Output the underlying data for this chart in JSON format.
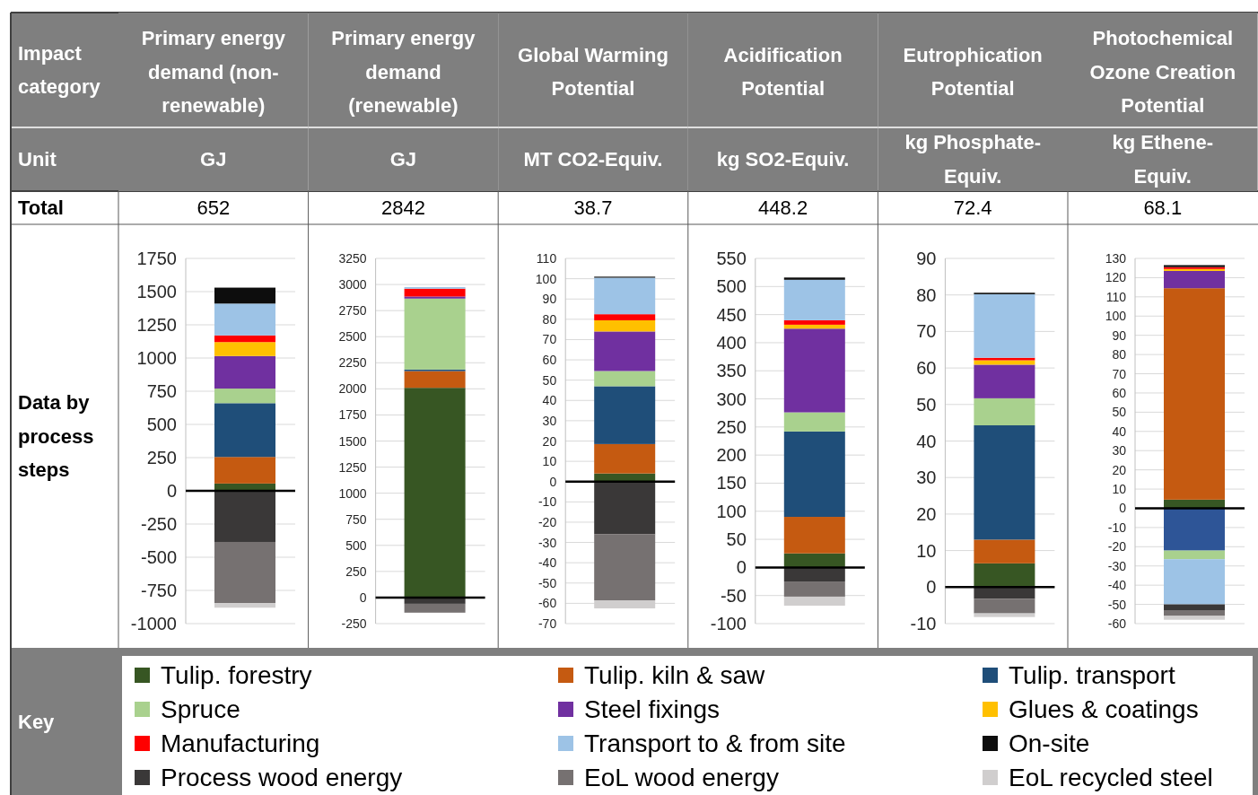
{
  "chart_data": [
    {
      "type": "bar",
      "stacked": true,
      "title": "Primary energy demand (non-renewable)",
      "subtitle": "GJ",
      "annotations": [
        "Impact category",
        "Unit",
        "Total",
        "Data by process steps",
        "Key",
        "652"
      ],
      "categories": [
        null
      ],
      "ylim": [
        -1000,
        1750
      ],
      "yticks": [
        -1000,
        -750,
        -500,
        -250,
        0,
        250,
        500,
        750,
        1000,
        1250,
        1500,
        1750
      ],
      "grid": "y",
      "legend": "bottom",
      "series": [
        {
          "name": "Tulip. forestry",
          "color": "#375623",
          "values": [
            55
          ]
        },
        {
          "name": "Tulip. kiln & saw",
          "color": "#c55a11",
          "values": [
            200
          ]
        },
        {
          "name": "Tulip. transport",
          "color": "#1f4e79",
          "values": [
            405
          ]
        },
        {
          "name": "Spruce",
          "color": "#a9d18e",
          "values": [
            110
          ]
        },
        {
          "name": "Steel fixings",
          "color": "#7030a0",
          "values": [
            245
          ]
        },
        {
          "name": "Glues & coatings",
          "color": "#ffc000",
          "values": [
            105
          ]
        },
        {
          "name": "Manufacturing",
          "color": "#ff0000",
          "values": [
            50
          ]
        },
        {
          "name": "Transport to & from site",
          "color": "#9dc3e6",
          "values": [
            240
          ]
        },
        {
          "name": "On-site",
          "color": "#0d0d0d",
          "values": [
            120
          ]
        },
        {
          "name": "Process wood energy",
          "color": "#3a3838",
          "values": [
            -385
          ]
        },
        {
          "name": "EoL wood energy",
          "color": "#767171",
          "values": [
            -460
          ]
        },
        {
          "name": "EoL recycled steel",
          "color": "#d0cece",
          "values": [
            -35
          ]
        }
      ]
    },
    {
      "type": "bar",
      "stacked": true,
      "title": "Primary energy demand (renewable)",
      "subtitle": "GJ",
      "annotations": [
        "2842"
      ],
      "categories": [
        null
      ],
      "ylim": [
        -250,
        3250
      ],
      "yticks": [
        -250,
        0,
        250,
        500,
        750,
        1000,
        1250,
        1500,
        1750,
        2000,
        2250,
        2500,
        2750,
        3000,
        3250
      ],
      "grid": "y",
      "series": [
        {
          "color": "#375623",
          "values": [
            2010
          ]
        },
        {
          "color": "#c55a11",
          "values": [
            160
          ]
        },
        {
          "color": "#1f4e79",
          "values": [
            15
          ]
        },
        {
          "color": "#a9d18e",
          "values": [
            680
          ]
        },
        {
          "color": "#7030a0",
          "values": [
            20
          ]
        },
        {
          "values": [
            null
          ]
        },
        {
          "color": "#ff0000",
          "values": [
            75
          ]
        },
        {
          "color": "#9dc3e6",
          "values": [
            15
          ]
        },
        {
          "values": [
            null
          ]
        },
        {
          "color": "#3a3838",
          "values": [
            -60
          ]
        },
        {
          "color": "#767171",
          "values": [
            -85
          ]
        },
        {
          "color": "#d0cece",
          "values": [
            0
          ]
        }
      ]
    },
    {
      "type": "bar",
      "stacked": true,
      "title": "Global Warming Potential",
      "subtitle": "MT CO2-Equiv.",
      "annotations": [
        "38.7"
      ],
      "categories": [
        null
      ],
      "ylim": [
        -70,
        110
      ],
      "yticks": [
        -70,
        -60,
        -50,
        -40,
        -30,
        -20,
        -10,
        0,
        10,
        20,
        30,
        40,
        50,
        60,
        70,
        80,
        90,
        100,
        110
      ],
      "grid": "y",
      "series": [
        {
          "color": "#375623",
          "values": [
            4
          ]
        },
        {
          "color": "#c55a11",
          "values": [
            14.5
          ]
        },
        {
          "color": "#1f4e79",
          "values": [
            28.5
          ]
        },
        {
          "color": "#a9d18e",
          "values": [
            7.5
          ]
        },
        {
          "color": "#7030a0",
          "values": [
            19.5
          ]
        },
        {
          "color": "#ffc000",
          "values": [
            5.5
          ]
        },
        {
          "color": "#ff0000",
          "values": [
            3
          ]
        },
        {
          "color": "#9dc3e6",
          "values": [
            18
          ]
        },
        {
          "color": "#0d0d0d",
          "values": [
            0.5
          ]
        },
        {
          "color": "#3a3838",
          "values": [
            -26
          ]
        },
        {
          "color": "#767171",
          "values": [
            -32.5
          ]
        },
        {
          "color": "#d0cece",
          "values": [
            -4
          ]
        }
      ]
    },
    {
      "type": "bar",
      "stacked": true,
      "title": "Acidification Potential",
      "subtitle": "kg SO2-Equiv.",
      "annotations": [
        "448.2"
      ],
      "categories": [
        null
      ],
      "ylim": [
        -100,
        550
      ],
      "yticks": [
        -100,
        -50,
        0,
        50,
        100,
        150,
        200,
        250,
        300,
        350,
        400,
        450,
        500,
        550
      ],
      "grid": "y",
      "series": [
        {
          "color": "#375623",
          "values": [
            25
          ]
        },
        {
          "color": "#c55a11",
          "values": [
            65
          ]
        },
        {
          "color": "#1f4e79",
          "values": [
            152
          ]
        },
        {
          "color": "#a9d18e",
          "values": [
            34
          ]
        },
        {
          "color": "#7030a0",
          "values": [
            149
          ]
        },
        {
          "color": "#ffc000",
          "values": [
            7
          ]
        },
        {
          "color": "#ff0000",
          "values": [
            8
          ]
        },
        {
          "color": "#9dc3e6",
          "values": [
            72
          ]
        },
        {
          "color": "#0d0d0d",
          "values": [
            4
          ]
        },
        {
          "color": "#3a3838",
          "values": [
            -25
          ]
        },
        {
          "color": "#767171",
          "values": [
            -27
          ]
        },
        {
          "color": "#d0cece",
          "values": [
            -16
          ]
        }
      ]
    },
    {
      "type": "bar",
      "stacked": true,
      "title": "Eutrophication Potential",
      "subtitle": "kg Phosphate-Equiv.",
      "annotations": [
        "72.4"
      ],
      "categories": [
        null
      ],
      "ylim": [
        -10,
        90
      ],
      "yticks": [
        -10,
        0,
        10,
        20,
        30,
        40,
        50,
        60,
        70,
        80,
        90
      ],
      "grid": "y",
      "series": [
        {
          "color": "#375623",
          "values": [
            6.5
          ]
        },
        {
          "color": "#c55a11",
          "values": [
            6.5
          ]
        },
        {
          "color": "#1f4e79",
          "values": [
            31.3
          ]
        },
        {
          "color": "#a9d18e",
          "values": [
            7.4
          ]
        },
        {
          "color": "#7030a0",
          "values": [
            9.2
          ]
        },
        {
          "color": "#ffc000",
          "values": [
            1.2
          ]
        },
        {
          "color": "#ff0000",
          "values": [
            0.7
          ]
        },
        {
          "color": "#9dc3e6",
          "values": [
            17.4
          ]
        },
        {
          "color": "#0d0d0d",
          "values": [
            0.4
          ]
        },
        {
          "color": "#3a3838",
          "values": [
            -3.2
          ]
        },
        {
          "color": "#767171",
          "values": [
            -4
          ]
        },
        {
          "color": "#d0cece",
          "values": [
            -1
          ]
        }
      ]
    },
    {
      "type": "bar",
      "stacked": true,
      "title": "Photochemical Ozone Creation Potential",
      "subtitle": "kg Ethene-Equiv.",
      "annotations": [
        "68.1"
      ],
      "categories": [
        null
      ],
      "ylim": [
        -60,
        130
      ],
      "yticks": [
        -60,
        -50,
        -40,
        -30,
        -20,
        -10,
        0,
        10,
        20,
        30,
        40,
        50,
        60,
        70,
        80,
        90,
        100,
        110,
        120,
        130
      ],
      "grid": "y",
      "series": [
        {
          "color": "#375623",
          "values": [
            4.5
          ]
        },
        {
          "color": "#c55a11",
          "values": [
            110
          ]
        },
        {
          "color": "#2e5597",
          "values": [
            -22
          ]
        },
        {
          "color": "#a9d18e",
          "values": [
            -4.5
          ]
        },
        {
          "color": "#7030a0",
          "values": [
            9
          ]
        },
        {
          "color": "#ffc000",
          "values": [
            1
          ]
        },
        {
          "color": "#ff0000",
          "values": [
            1
          ]
        },
        {
          "color": "#9dc3e6",
          "values": [
            -23.5
          ]
        },
        {
          "color": "#0d0d0d",
          "values": [
            1
          ]
        },
        {
          "color": "#3a3838",
          "values": [
            -3
          ]
        },
        {
          "color": "#767171",
          "values": [
            -3
          ]
        },
        {
          "color": "#d0cece",
          "values": [
            -2
          ]
        }
      ]
    }
  ]
}
